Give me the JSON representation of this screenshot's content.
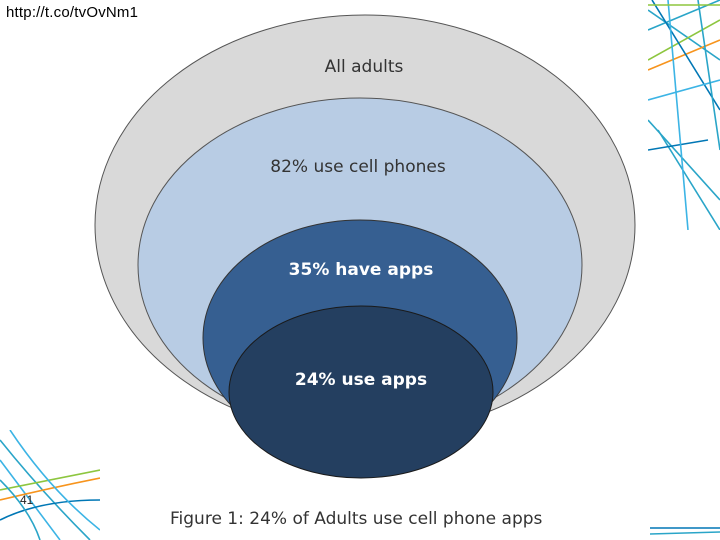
{
  "header": {
    "url": "http://t.co/tvOvNm1"
  },
  "slide": {
    "number": "41"
  },
  "diagram": {
    "rings": [
      {
        "label": "All adults",
        "fill": "#d9d9d9",
        "text_color": "#333333"
      },
      {
        "label": "82% use cell phones",
        "fill": "#b8cce4",
        "text_color": "#333333"
      },
      {
        "label": "35% have apps",
        "fill": "#365f91",
        "text_color": "#ffffff"
      },
      {
        "label": "24% use apps",
        "fill": "#243f60",
        "text_color": "#ffffff"
      }
    ],
    "caption": "Figure 1:  24% of Adults use cell phone apps"
  },
  "decoration": {
    "colors": [
      "#2aa5c8",
      "#8dc63f",
      "#f7941d",
      "#0077b5",
      "#3cb4e5"
    ]
  }
}
